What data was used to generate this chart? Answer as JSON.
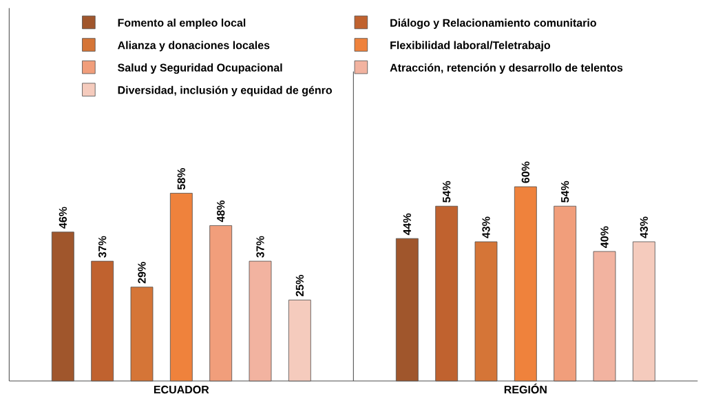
{
  "chart_data": {
    "type": "bar",
    "categories": [
      "ECUADOR",
      "REGIÓN"
    ],
    "series": [
      {
        "name": "Fomento al empleo local",
        "color": "#a0562c",
        "values": [
          46,
          44
        ],
        "value_labels": [
          "46%",
          "44%"
        ]
      },
      {
        "name": "Diálogo y Relacionamiento comunitario",
        "color": "#c0622f",
        "values": [
          37,
          54
        ],
        "value_labels": [
          "37%",
          "54%"
        ]
      },
      {
        "name": "Alianza y donaciones locales",
        "color": "#d57537",
        "values": [
          29,
          43
        ],
        "value_labels": [
          "29%",
          "43%"
        ]
      },
      {
        "name": "Flexibilidad laboral/Teletrabajo",
        "color": "#ef823c",
        "values": [
          58,
          60
        ],
        "value_labels": [
          "58%",
          "60%"
        ]
      },
      {
        "name": "Salud y Seguridad Ocupacional",
        "color": "#f19e7b",
        "values": [
          48,
          54
        ],
        "value_labels": [
          "48%",
          "54%"
        ]
      },
      {
        "name": "Atracción, retención y desarrollo de telentos",
        "color": "#f2b3a0",
        "values": [
          37,
          40
        ],
        "value_labels": [
          "37%",
          "40%"
        ]
      },
      {
        "name": "Diversidad, inclusión y equidad de génro",
        "color": "#f5cbbd",
        "values": [
          25,
          43
        ],
        "value_labels": [
          "25%",
          "43%"
        ]
      }
    ],
    "legend": "top"
  }
}
